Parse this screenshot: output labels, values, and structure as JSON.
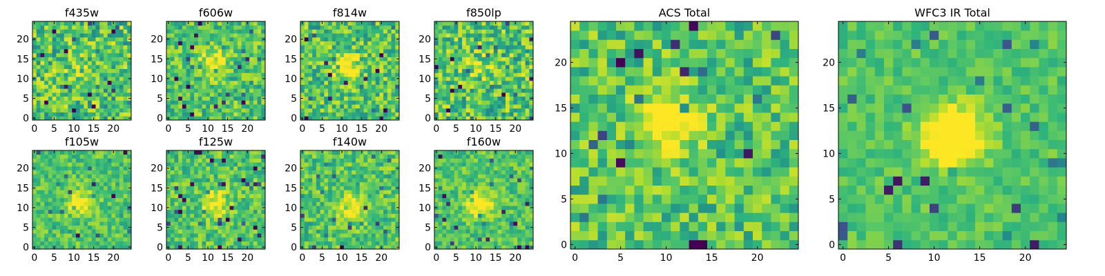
{
  "figure": {
    "description_id": "galaxy-cutouts-by-filter"
  },
  "colormap": {
    "name": "viridis-like",
    "stops": [
      "#440154",
      "#3b528b",
      "#21918c",
      "#2fb47c",
      "#5ec962",
      "#addc30",
      "#fde725"
    ]
  },
  "chart_data": [
    {
      "type": "heatmap",
      "id": "f435w",
      "title": "f435w",
      "grid_size": 25,
      "x_ticks": [
        0,
        5,
        10,
        15,
        20
      ],
      "y_ticks": [
        0,
        5,
        10,
        15,
        20
      ],
      "xlim": [
        -0.5,
        24.5
      ],
      "ylim": [
        -0.5,
        24.5
      ],
      "noise": 0.55,
      "blob_strength": 0.1,
      "blob_center": [
        11,
        13
      ],
      "seed": 11
    },
    {
      "type": "heatmap",
      "id": "f606w",
      "title": "f606w",
      "grid_size": 25,
      "x_ticks": [
        0,
        5,
        10,
        15,
        20
      ],
      "y_ticks": [
        0,
        5,
        10,
        15,
        20
      ],
      "xlim": [
        -0.5,
        24.5
      ],
      "ylim": [
        -0.5,
        24.5
      ],
      "noise": 0.45,
      "blob_strength": 0.45,
      "blob_center": [
        11,
        14
      ],
      "seed": 23
    },
    {
      "type": "heatmap",
      "id": "f814w",
      "title": "f814w",
      "grid_size": 25,
      "x_ticks": [
        0,
        5,
        10,
        15,
        20
      ],
      "y_ticks": [
        0,
        5,
        10,
        15,
        20
      ],
      "xlim": [
        -0.5,
        24.5
      ],
      "ylim": [
        -0.5,
        24.5
      ],
      "noise": 0.5,
      "blob_strength": 0.55,
      "blob_center": [
        11,
        13
      ],
      "seed": 37
    },
    {
      "type": "heatmap",
      "id": "f850lp",
      "title": "f850lp",
      "grid_size": 25,
      "x_ticks": [
        0,
        5,
        10,
        15,
        20
      ],
      "y_ticks": [
        0,
        5,
        10,
        15,
        20
      ],
      "xlim": [
        -0.5,
        24.5
      ],
      "ylim": [
        -0.5,
        24.5
      ],
      "noise": 0.55,
      "blob_strength": 0.15,
      "blob_center": [
        11,
        13
      ],
      "seed": 41
    },
    {
      "type": "heatmap",
      "id": "f105w",
      "title": "f105w",
      "grid_size": 25,
      "x_ticks": [
        0,
        5,
        10,
        15,
        20
      ],
      "y_ticks": [
        0,
        5,
        10,
        15,
        20
      ],
      "xlim": [
        -0.5,
        24.5
      ],
      "ylim": [
        -0.5,
        24.5
      ],
      "noise": 0.35,
      "blob_strength": 0.45,
      "blob_center": [
        12,
        11
      ],
      "seed": 53
    },
    {
      "type": "heatmap",
      "id": "f125w",
      "title": "f125w",
      "grid_size": 25,
      "x_ticks": [
        0,
        5,
        10,
        15,
        20
      ],
      "y_ticks": [
        0,
        5,
        10,
        15,
        20
      ],
      "xlim": [
        -0.5,
        24.5
      ],
      "ylim": [
        -0.5,
        24.5
      ],
      "noise": 0.4,
      "blob_strength": 0.45,
      "blob_center": [
        12,
        11
      ],
      "seed": 67
    },
    {
      "type": "heatmap",
      "id": "f140w",
      "title": "f140w",
      "grid_size": 25,
      "x_ticks": [
        0,
        5,
        10,
        15,
        20
      ],
      "y_ticks": [
        0,
        5,
        10,
        15,
        20
      ],
      "xlim": [
        -0.5,
        24.5
      ],
      "ylim": [
        -0.5,
        24.5
      ],
      "noise": 0.4,
      "blob_strength": 0.45,
      "blob_center": [
        12,
        10
      ],
      "seed": 79
    },
    {
      "type": "heatmap",
      "id": "f160w",
      "title": "f160w",
      "grid_size": 25,
      "x_ticks": [
        0,
        5,
        10,
        15,
        20
      ],
      "y_ticks": [
        0,
        5,
        10,
        15,
        20
      ],
      "xlim": [
        -0.5,
        24.5
      ],
      "ylim": [
        -0.5,
        24.5
      ],
      "noise": 0.35,
      "blob_strength": 0.55,
      "blob_center": [
        11,
        11
      ],
      "seed": 83
    },
    {
      "type": "heatmap",
      "id": "acs_total",
      "title": "ACS Total",
      "grid_size": 25,
      "x_ticks": [
        0,
        5,
        10,
        15,
        20
      ],
      "y_ticks": [
        0,
        5,
        10,
        15,
        20
      ],
      "xlim": [
        -0.5,
        24.5
      ],
      "ylim": [
        -0.5,
        24.5
      ],
      "noise": 0.45,
      "blob_strength": 0.6,
      "blob_center": [
        10,
        13
      ],
      "seed": 97
    },
    {
      "type": "heatmap",
      "id": "wfc3_ir_total",
      "title": "WFC3 IR Total",
      "grid_size": 25,
      "x_ticks": [
        0,
        5,
        10,
        15,
        20
      ],
      "y_ticks": [
        0,
        5,
        10,
        15,
        20
      ],
      "xlim": [
        -0.5,
        24.5
      ],
      "ylim": [
        -0.5,
        24.5
      ],
      "noise": 0.25,
      "blob_strength": 0.75,
      "blob_center": [
        12,
        12
      ],
      "seed": 101
    }
  ]
}
